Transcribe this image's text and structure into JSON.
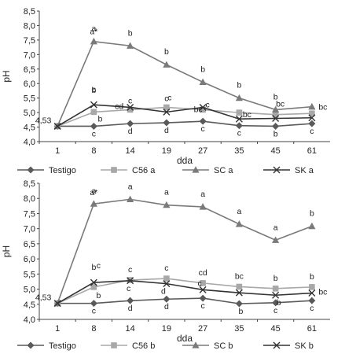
{
  "chart_data": [
    {
      "type": "line",
      "panel": "top",
      "xlabel": "dda",
      "ylabel": "pH",
      "categories": [
        "1",
        "8",
        "14",
        "19",
        "27",
        "35",
        "45",
        "61"
      ],
      "ylim": [
        4.0,
        8.5
      ],
      "yticks": [
        "4,0",
        "4,5",
        "5,0",
        "5,5",
        "6,0",
        "6,5",
        "7,0",
        "7,5",
        "8,0",
        "8,5"
      ],
      "grid": false,
      "legend_position": "bottom",
      "start_label": "4,53",
      "series": [
        {
          "name": "Testigo",
          "color": "#5a5a5a",
          "marker": "diamond",
          "values": [
            4.53,
            4.53,
            4.62,
            4.65,
            4.7,
            4.55,
            4.53,
            4.62
          ],
          "letters": [
            "",
            "c",
            "d",
            "d",
            "c",
            "c",
            "b",
            "c"
          ]
        },
        {
          "name": "C56 a",
          "color": "#a8a8a8",
          "marker": "square",
          "values": [
            4.53,
            5.02,
            5.1,
            5.18,
            5.1,
            5.0,
            4.93,
            4.97
          ],
          "letters": [
            "",
            "b",
            "c",
            "c",
            "c",
            "bc",
            "",
            ""
          ]
        },
        {
          "name": "SC a",
          "color": "#7a7a7a",
          "marker": "triangle",
          "values": [
            4.53,
            7.45,
            7.3,
            6.65,
            6.05,
            5.5,
            5.1,
            5.2
          ],
          "letters": [
            "a*",
            "a",
            "b",
            "b",
            "b",
            "b",
            "b",
            "bc"
          ]
        },
        {
          "name": "SK a",
          "color": "#333333",
          "marker": "x",
          "values": [
            4.53,
            5.27,
            5.18,
            5.02,
            5.18,
            4.78,
            4.8,
            4.82
          ],
          "letters": [
            "b",
            "c",
            "cd",
            "c",
            "bc",
            "",
            "bc",
            ""
          ]
        }
      ]
    },
    {
      "type": "line",
      "panel": "bottom",
      "xlabel": "dda",
      "ylabel": "pH",
      "categories": [
        "1",
        "8",
        "14",
        "19",
        "27",
        "35",
        "45",
        "61"
      ],
      "ylim": [
        4.0,
        8.5
      ],
      "yticks": [
        "4,0",
        "4,5",
        "5,0",
        "5,5",
        "6,0",
        "6,5",
        "7,0",
        "7,5",
        "8,0",
        "8,5"
      ],
      "grid": false,
      "legend_position": "bottom",
      "start_label": "4,53",
      "series": [
        {
          "name": "Testigo",
          "color": "#5a5a5a",
          "marker": "diamond",
          "values": [
            4.53,
            4.53,
            4.62,
            4.67,
            4.7,
            4.52,
            4.55,
            4.62
          ],
          "letters": [
            "",
            "c",
            "d",
            "d",
            "c",
            "b",
            "c",
            "c"
          ]
        },
        {
          "name": "C56 b",
          "color": "#a8a8a8",
          "marker": "square",
          "values": [
            4.53,
            5.07,
            5.3,
            5.35,
            5.2,
            5.08,
            5.02,
            5.07
          ],
          "letters": [
            "",
            "b",
            "c",
            "c",
            "cd",
            "bc",
            "b",
            "b"
          ]
        },
        {
          "name": "SC b",
          "color": "#7a7a7a",
          "marker": "triangle",
          "values": [
            4.53,
            7.82,
            7.97,
            7.78,
            7.72,
            7.15,
            6.62,
            7.08
          ],
          "letters": [
            "a*",
            "a",
            "a",
            "a",
            "a",
            "a",
            "a",
            "b"
          ]
        },
        {
          "name": "SK b",
          "color": "#333333",
          "marker": "x",
          "values": [
            4.53,
            5.22,
            5.28,
            5.18,
            4.98,
            4.88,
            4.8,
            4.87
          ],
          "letters": [
            "b",
            "c",
            "c",
            "d",
            "c",
            "",
            "b",
            "bc"
          ]
        }
      ]
    }
  ]
}
